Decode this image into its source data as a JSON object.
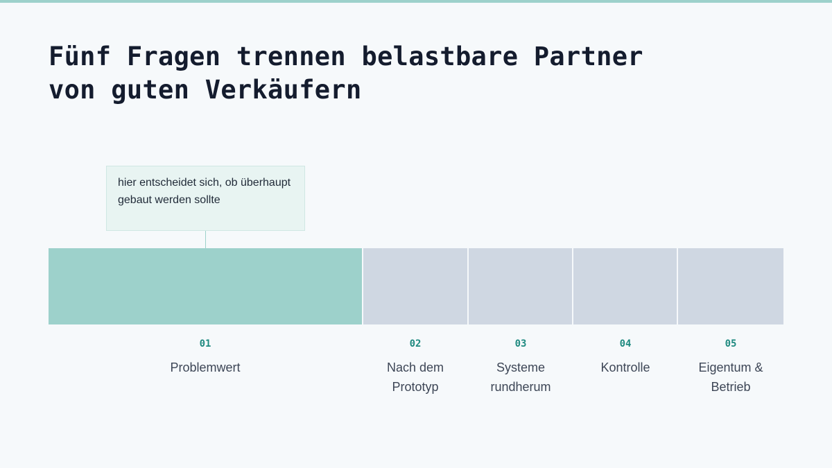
{
  "slide": {
    "title_lines": [
      "Fünf Fragen trennen belastbare Partner",
      "von guten Verkäufern"
    ],
    "callout": "hier entscheidet sich, ob überhaupt gebaut werden sollte",
    "colors": {
      "accent": "#9dd1cb",
      "inactive": "#cfd7e2",
      "number": "#1f8a80",
      "title": "#141c2e",
      "background": "#f6f9fb"
    }
  },
  "steps": [
    {
      "number": "01",
      "label": "Problemwert",
      "highlighted": true
    },
    {
      "number": "02",
      "label": "Nach dem Prototyp",
      "highlighted": false
    },
    {
      "number": "03",
      "label": "Systeme rundherum",
      "highlighted": false
    },
    {
      "number": "04",
      "label": "Kontrolle",
      "highlighted": false
    },
    {
      "number": "05",
      "label": "Eigentum & Betrieb",
      "highlighted": false
    }
  ]
}
